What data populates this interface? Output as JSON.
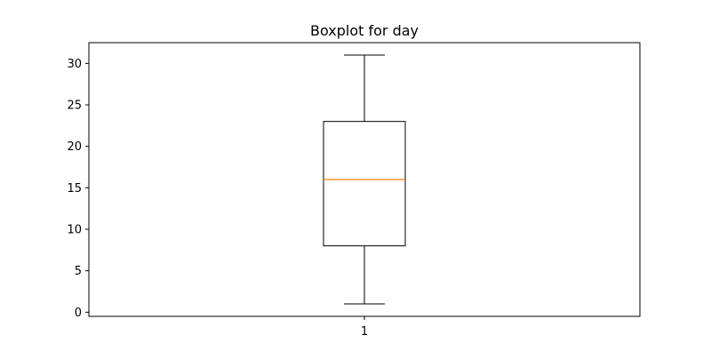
{
  "chart_data": {
    "type": "boxplot",
    "title": "Boxplot for day",
    "xlabel": "",
    "ylabel": "",
    "categories": [
      "1"
    ],
    "boxes": [
      {
        "category": "1",
        "whisker_low": 1,
        "q1": 8,
        "median": 16,
        "q3": 23,
        "whisker_high": 31
      }
    ],
    "ylim": [
      -0.5,
      32.5
    ],
    "yticks": [
      0,
      5,
      10,
      15,
      20,
      25,
      30
    ],
    "grid": false,
    "legend": "none",
    "colors": {
      "box": "#000000",
      "median": "#ff7f0e",
      "whisker": "#000000"
    }
  }
}
